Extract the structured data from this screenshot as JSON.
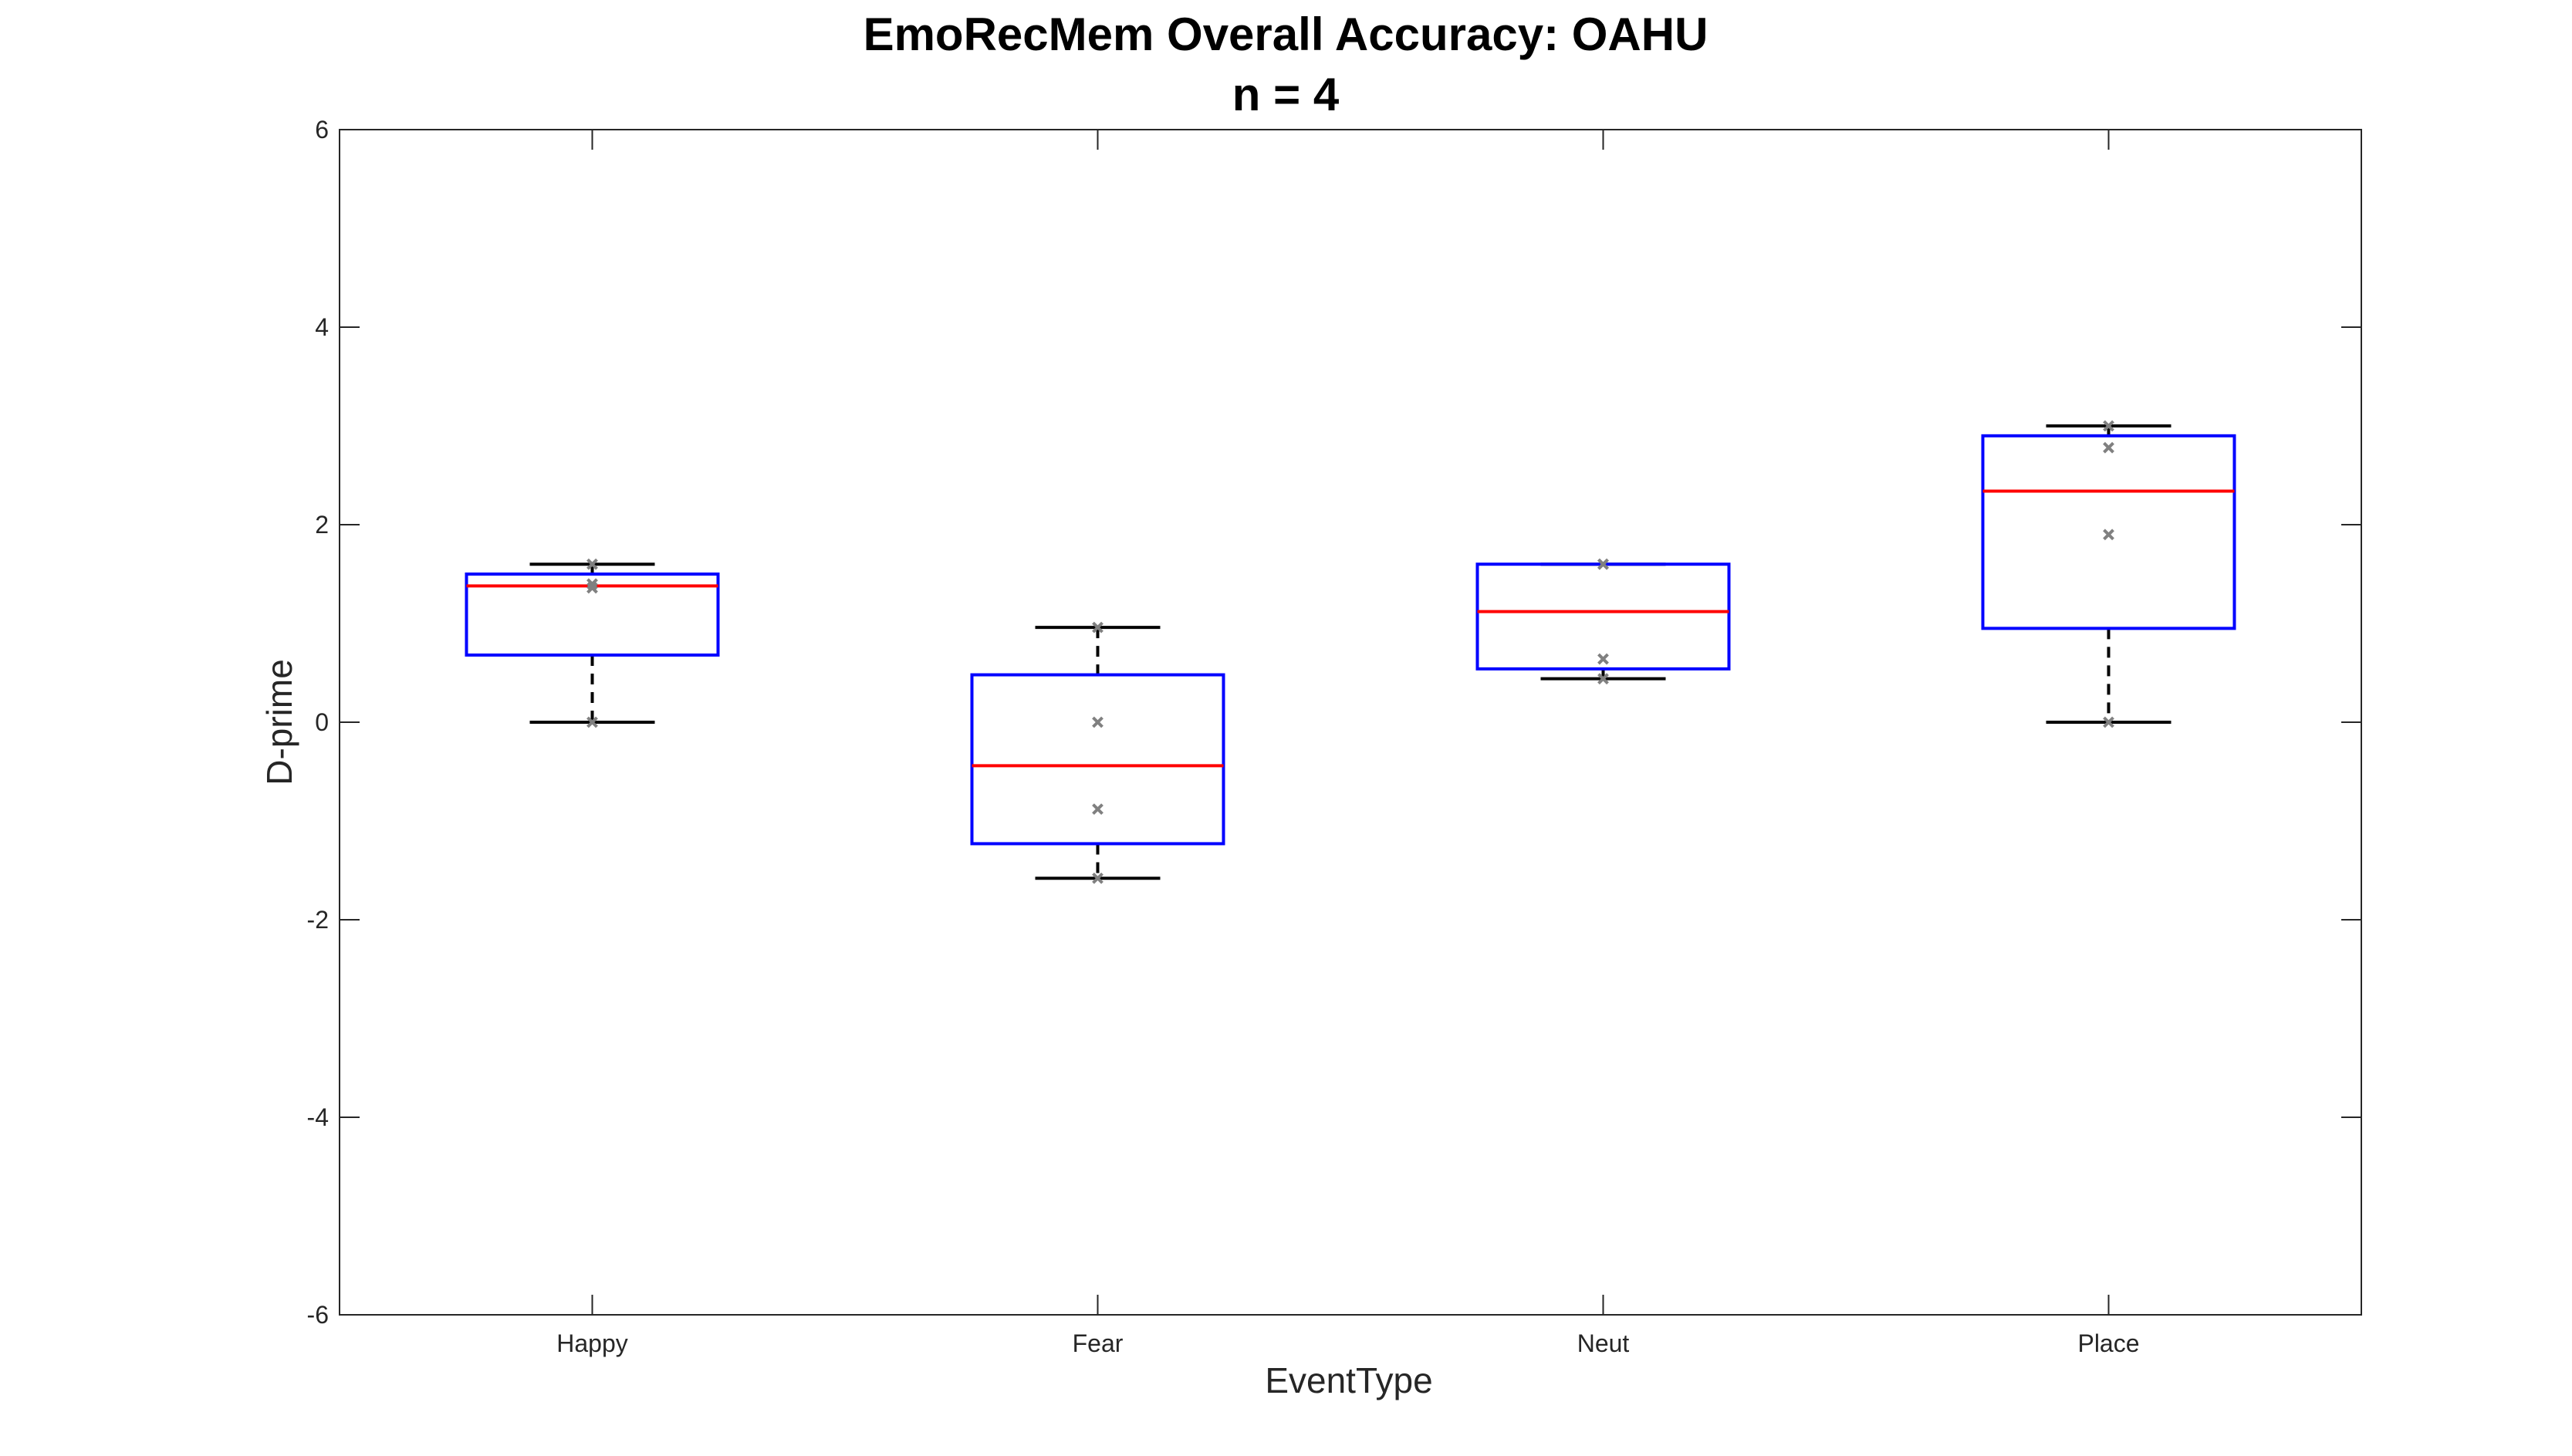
{
  "chart_data": {
    "type": "box",
    "title": "EmoRecMem Overall Accuracy: OAHU",
    "subtitle": "n = 4",
    "xlabel": "EventType",
    "ylabel": "D-prime",
    "ylim": [
      -6,
      6
    ],
    "yticks": [
      -6,
      -4,
      -2,
      0,
      2,
      4,
      6
    ],
    "grid": false,
    "categories": [
      "Happy",
      "Fear",
      "Neut",
      "Place"
    ],
    "boxes": [
      {
        "category": "Happy",
        "whisker_low": 0.0,
        "q1": 0.68,
        "median": 1.38,
        "q3": 1.5,
        "whisker_high": 1.6,
        "points": [
          0.0,
          1.36,
          1.4,
          1.6
        ]
      },
      {
        "category": "Fear",
        "whisker_low": -1.58,
        "q1": -1.23,
        "median": -0.44,
        "q3": 0.48,
        "whisker_high": 0.96,
        "points": [
          -1.58,
          -0.88,
          0.0,
          0.96
        ]
      },
      {
        "category": "Neut",
        "whisker_low": 0.44,
        "q1": 0.54,
        "median": 1.12,
        "q3": 1.6,
        "whisker_high": 1.6,
        "points": [
          0.44,
          0.64,
          1.6,
          1.6
        ]
      },
      {
        "category": "Place",
        "whisker_low": 0.0,
        "q1": 0.95,
        "median": 2.34,
        "q3": 2.9,
        "whisker_high": 3.0,
        "points": [
          0.0,
          1.9,
          2.78,
          3.0
        ]
      }
    ],
    "colors": {
      "box": "#0000ff",
      "median": "#ff0000",
      "whisker": "#000000",
      "points": "#808080",
      "axis": "#262626"
    }
  }
}
